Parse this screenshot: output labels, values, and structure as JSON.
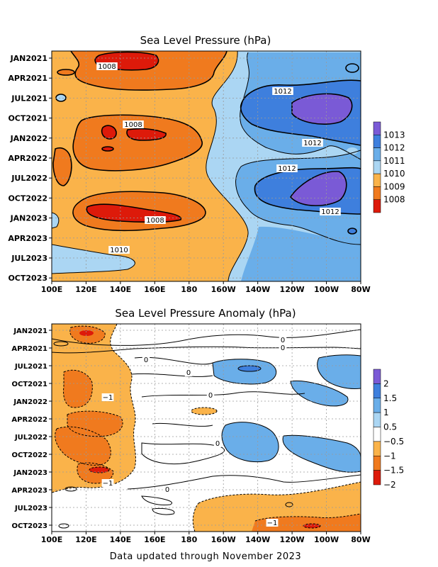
{
  "footer": "Data updated through November 2023",
  "chart_data": [
    {
      "type": "heatmap",
      "title": "Sea Level Pressure (hPa)",
      "x_ticks": [
        "100E",
        "120E",
        "140E",
        "160E",
        "180",
        "160W",
        "140W",
        "120W",
        "100W",
        "80W"
      ],
      "y_ticks": [
        "JAN2021",
        "APR2021",
        "JUL2021",
        "OCT2021",
        "JAN2022",
        "APR2022",
        "JUL2022",
        "OCT2022",
        "JAN2023",
        "APR2023",
        "JUL2023",
        "OCT2023"
      ],
      "colorbar": {
        "labels": [
          "1013",
          "1012",
          "1011",
          "1010",
          "1009",
          "1008"
        ],
        "colors": [
          "#7a5ad6",
          "#3e7fdd",
          "#6aaee9",
          "#abd6f3",
          "#fab34a",
          "#f07a1e",
          "#dd1a0a"
        ]
      },
      "contour_labels": [
        "1008",
        "1012",
        "1008",
        "1012",
        "1012",
        "1012",
        "1008",
        "1010"
      ],
      "grid": true
    },
    {
      "type": "heatmap",
      "title": "Sea Level Pressure Anomaly (hPa)",
      "x_ticks": [
        "100E",
        "120E",
        "140E",
        "160E",
        "180",
        "160W",
        "140W",
        "120W",
        "100W",
        "80W"
      ],
      "y_ticks": [
        "JAN2021",
        "APR2021",
        "JUL2021",
        "OCT2021",
        "JAN2022",
        "APR2022",
        "JUL2022",
        "OCT2022",
        "JAN2023",
        "APR2023",
        "JUL2023",
        "OCT2023"
      ],
      "colorbar": {
        "labels": [
          "2",
          "1.5",
          "1",
          "0.5",
          "−0.5",
          "−1",
          "−1.5",
          "−2"
        ],
        "colors": [
          "#7a5ad6",
          "#3e7fdd",
          "#6aaee9",
          "#abd6f3",
          "#ffffff",
          "#fab34a",
          "#f07a1e",
          "#dd1a0a"
        ]
      },
      "contour_labels": [
        "0",
        "0",
        "0",
        "0",
        "0",
        "0",
        "0",
        "−1",
        "−1",
        "−1"
      ],
      "grid": true
    }
  ]
}
